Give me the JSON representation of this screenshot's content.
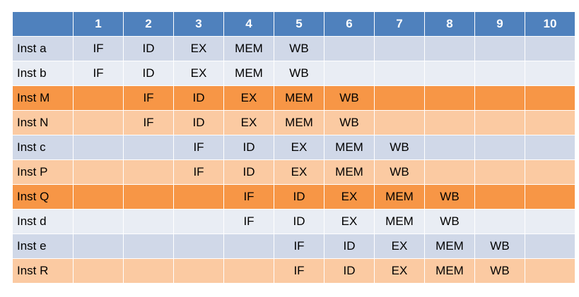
{
  "header": {
    "corner": "",
    "cycles": [
      "1",
      "2",
      "3",
      "4",
      "5",
      "6",
      "7",
      "8",
      "9",
      "10"
    ]
  },
  "rows": [
    {
      "label": "Inst a",
      "style": "blue-a",
      "cells": [
        "IF",
        "ID",
        "EX",
        "MEM",
        "WB",
        "",
        "",
        "",
        "",
        ""
      ]
    },
    {
      "label": "Inst b",
      "style": "blue-b",
      "cells": [
        "IF",
        "ID",
        "EX",
        "MEM",
        "WB",
        "",
        "",
        "",
        "",
        ""
      ]
    },
    {
      "label": "Inst M",
      "style": "orange-dark",
      "cells": [
        "",
        "IF",
        "ID",
        "EX",
        "MEM",
        "WB",
        "",
        "",
        "",
        ""
      ]
    },
    {
      "label": "Inst N",
      "style": "orange-light",
      "cells": [
        "",
        "IF",
        "ID",
        "EX",
        "MEM",
        "WB",
        "",
        "",
        "",
        ""
      ]
    },
    {
      "label": "Inst c",
      "style": "blue-a",
      "cells": [
        "",
        "",
        "IF",
        "ID",
        "EX",
        "MEM",
        "WB",
        "",
        "",
        ""
      ]
    },
    {
      "label": "Inst P",
      "style": "orange-light",
      "cells": [
        "",
        "",
        "IF",
        "ID",
        "EX",
        "MEM",
        "WB",
        "",
        "",
        ""
      ]
    },
    {
      "label": "Inst Q",
      "style": "orange-dark",
      "cells": [
        "",
        "",
        "",
        "IF",
        "ID",
        "EX",
        "MEM",
        "WB",
        "",
        ""
      ]
    },
    {
      "label": "Inst d",
      "style": "blue-b",
      "cells": [
        "",
        "",
        "",
        "IF",
        "ID",
        "EX",
        "MEM",
        "WB",
        "",
        ""
      ]
    },
    {
      "label": "Inst e",
      "style": "blue-a",
      "cells": [
        "",
        "",
        "",
        "",
        "IF",
        "ID",
        "EX",
        "MEM",
        "WB",
        ""
      ]
    },
    {
      "label": "Inst R",
      "style": "orange-light",
      "cells": [
        "",
        "",
        "",
        "",
        "IF",
        "ID",
        "EX",
        "MEM",
        "WB",
        ""
      ]
    }
  ],
  "colors": {
    "header": "#4f81bd",
    "blue-a": "#d0d8e8",
    "blue-b": "#e9edf4",
    "orange-dark": "#f79646",
    "orange-light": "#fbcaa2"
  }
}
